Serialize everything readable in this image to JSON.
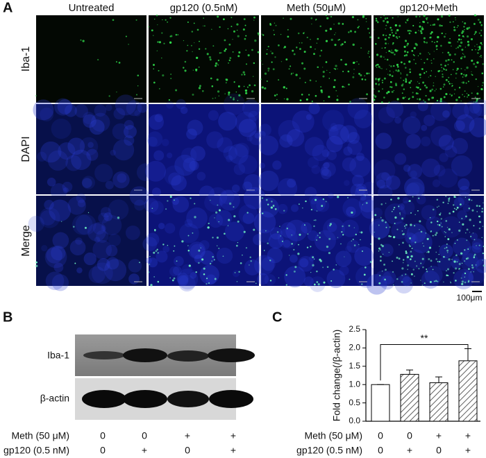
{
  "panel_a": {
    "label": "A",
    "columns": [
      "Untreated",
      "gp120 (0.5nM)",
      "Meth (50μM)",
      "gp120+Meth"
    ],
    "rows": [
      "Iba-1",
      "DAPI",
      "Merge"
    ],
    "scale_bar": "100μm"
  },
  "panel_b": {
    "label": "B",
    "bands": [
      "Iba-1",
      "β-actin"
    ],
    "treatment_table": [
      {
        "name": "Meth (50 μM)",
        "values": [
          "0",
          "0",
          "+",
          "+"
        ]
      },
      {
        "name": "gp120 (0.5 nM)",
        "values": [
          "0",
          "+",
          "0",
          "+"
        ]
      }
    ]
  },
  "panel_c": {
    "label": "C"
  },
  "chart_data": {
    "type": "bar",
    "y_label": "Fold change(/β-actin)",
    "values": [
      1.0,
      1.28,
      1.05,
      1.65
    ],
    "errors": [
      0,
      0.12,
      0.16,
      0.33
    ],
    "fills": [
      "white",
      "hatch",
      "hatch",
      "hatch"
    ],
    "ylim": [
      0,
      2.5
    ],
    "yticks": [
      {
        "value": 0,
        "label": "0.0"
      },
      0.5,
      {
        "value": 1,
        "label": "1.0"
      },
      1.5,
      {
        "value": 2,
        "label": "2.0"
      },
      2.5
    ],
    "annotation": {
      "text": "**",
      "between": [
        0,
        3
      ]
    },
    "treatment_table": [
      {
        "name": "Meth (50 μM)",
        "values": [
          "0",
          "0",
          "+",
          "+"
        ]
      },
      {
        "name": "gp120 (0.5 nM)",
        "values": [
          "0",
          "+",
          "0",
          "+"
        ]
      }
    ]
  }
}
